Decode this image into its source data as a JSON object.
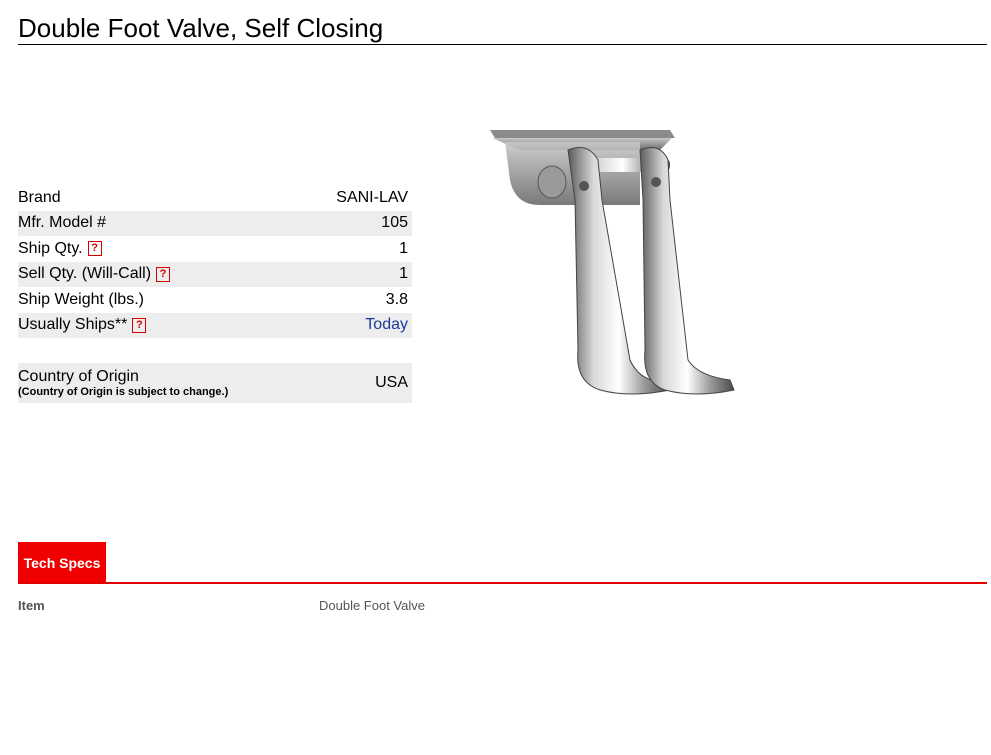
{
  "product": {
    "title": "Double Foot Valve, Self Closing"
  },
  "specs": [
    {
      "label": "Brand",
      "value": "SANI-LAV",
      "help": false,
      "link": false
    },
    {
      "label": "Mfr. Model #",
      "value": "105",
      "help": false,
      "link": false
    },
    {
      "label": "Ship Qty.",
      "value": "1",
      "help": true,
      "link": false
    },
    {
      "label": "Sell Qty. (Will-Call)",
      "value": "1",
      "help": true,
      "link": false
    },
    {
      "label": "Ship Weight (lbs.)",
      "value": "3.8",
      "help": false,
      "link": false
    },
    {
      "label": "Usually Ships**",
      "value": "Today",
      "help": true,
      "link": true
    }
  ],
  "origin": {
    "label": "Country of Origin",
    "note": "(Country of Origin is subject to change.)",
    "value": "USA"
  },
  "help_icon_glyph": "?",
  "tabs": [
    {
      "label": "Tech Specs",
      "active": true
    }
  ],
  "tech_specs": [
    {
      "label": "Item",
      "value": "Double Foot Valve"
    }
  ],
  "colors": {
    "accent": "#f00000",
    "link": "#1a3a9a",
    "row_shade": "#ededed"
  }
}
